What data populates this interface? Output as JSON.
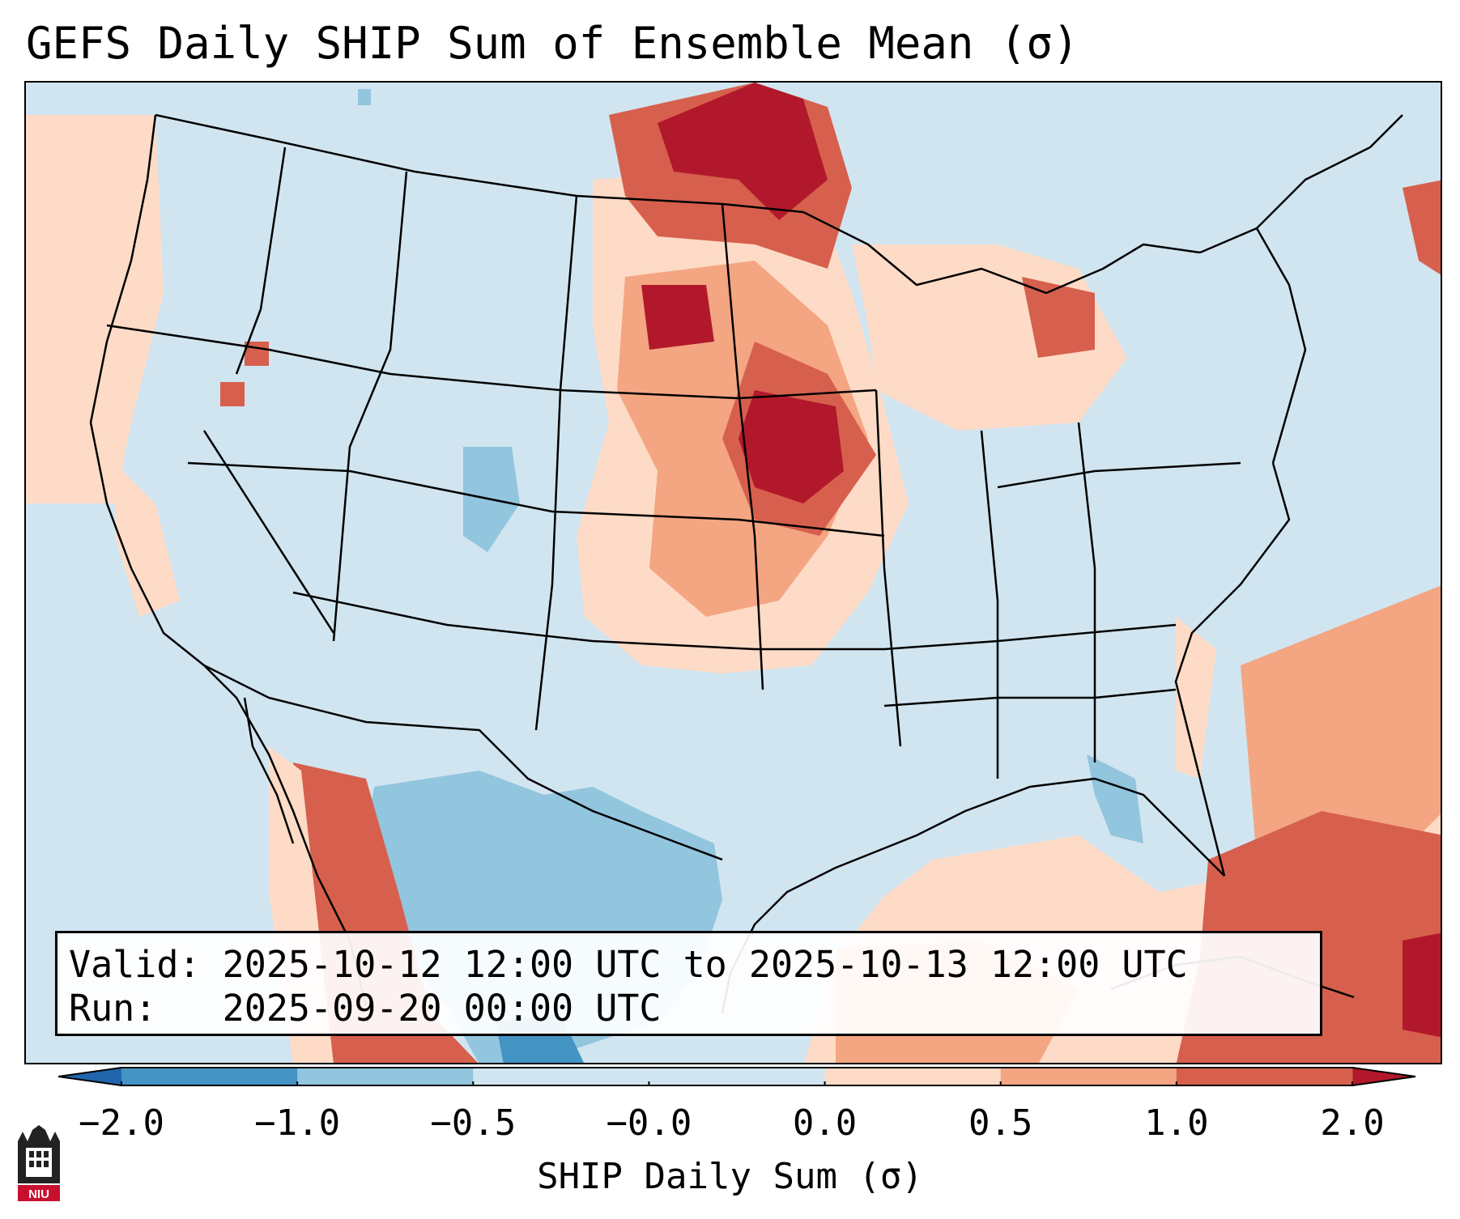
{
  "title": "GEFS Daily SHIP Sum of Ensemble Mean (σ)",
  "valid_line": "Valid: 2025-10-12 12:00 UTC to 2025-10-13 12:00 UTC",
  "run_line": "Run:   2025-09-20 00:00 UTC",
  "colorbar": {
    "label": "SHIP Daily Sum (σ)",
    "ticks": [
      "−2.0",
      "−1.0",
      "−0.5",
      "−0.0",
      "0.0",
      "0.5",
      "1.0",
      "2.0"
    ],
    "colors": [
      "#4393c3",
      "#92c5de",
      "#d1e5f0",
      "#d1e5f0",
      "#fddbc7",
      "#f4a582",
      "#d6604d"
    ],
    "extend_low_color": "#2166ac",
    "extend_high_color": "#b2182b"
  },
  "map_colors": {
    "neutral_neg": "#d1e5f0",
    "light_neg": "#92c5de",
    "mid_neg": "#4393c3",
    "light_pos": "#fddbc7",
    "mid_pos": "#f4a582",
    "high_pos": "#d6604d",
    "max_pos": "#b2182b"
  },
  "logo_text": "NIU"
}
